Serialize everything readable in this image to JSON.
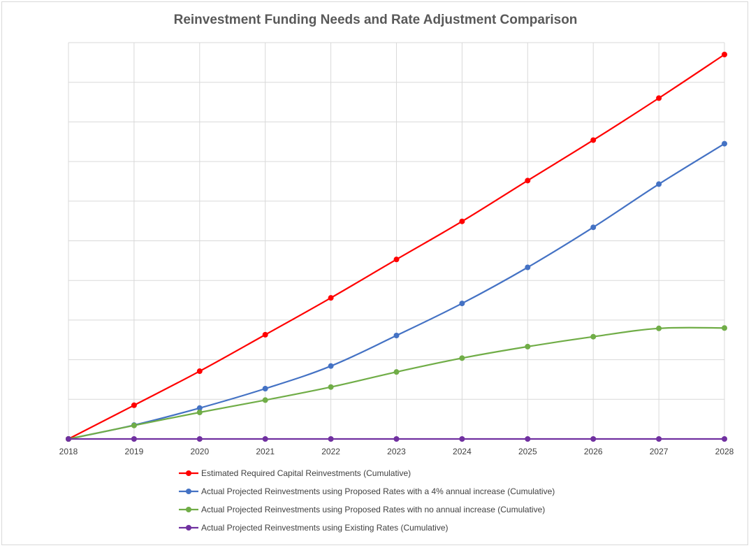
{
  "chart_data": {
    "type": "line",
    "title": "Reinvestment Funding Needs and Rate Adjustment Comparison",
    "xlabel": "",
    "ylabel": "",
    "x": [
      "2018",
      "2019",
      "2020",
      "2021",
      "2022",
      "2023",
      "2024",
      "2025",
      "2026",
      "2027",
      "2028"
    ],
    "ylim": [
      0,
      100
    ],
    "y_tick_labels_visible": false,
    "grid": true,
    "legend_position": "bottom",
    "series": [
      {
        "name": "Estimated Required Capital Reinvestments (Cumulative)",
        "color": "#ff0000",
        "values": [
          0,
          8.5,
          17.1,
          26.3,
          35.6,
          45.3,
          54.9,
          65.2,
          75.4,
          86.0,
          97.0
        ]
      },
      {
        "name": "Actual Projected Reinvestments using Proposed Rates with a 4% annual increase (Cumulative)",
        "color": "#4472c4",
        "values": [
          0,
          3.5,
          7.8,
          12.7,
          18.4,
          26.1,
          34.2,
          43.3,
          53.4,
          64.3,
          74.5
        ]
      },
      {
        "name": "Actual Projected Reinvestments using Proposed Rates with no annual increase (Cumulative)",
        "color": "#70ad47",
        "values": [
          0,
          3.4,
          6.7,
          9.8,
          13.1,
          16.9,
          20.4,
          23.3,
          25.8,
          27.9,
          28.0
        ]
      },
      {
        "name": "Actual Projected Reinvestments using Existing Rates (Cumulative)",
        "color": "#7030a0",
        "values": [
          0,
          0,
          0,
          0,
          0,
          0,
          0,
          0,
          0,
          0,
          0
        ]
      }
    ]
  }
}
